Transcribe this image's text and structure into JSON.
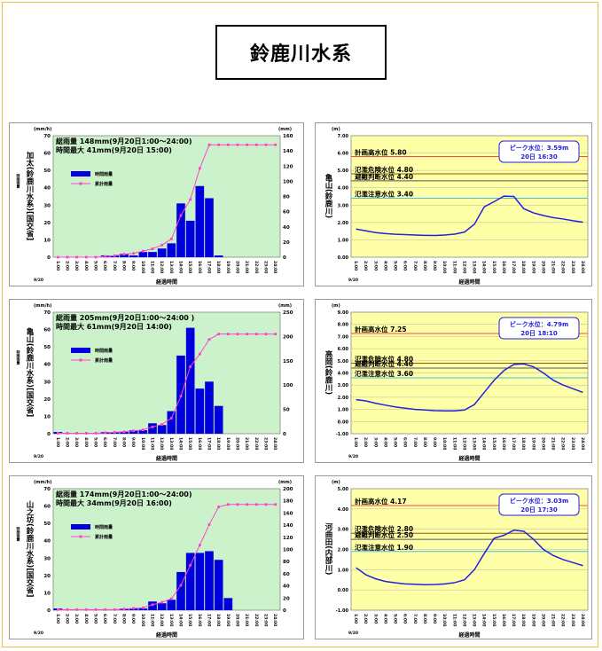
{
  "page_title": "鈴鹿川水系",
  "x_labels": [
    "1:00",
    "2:00",
    "3:00",
    "4:00",
    "5:00",
    "6:00",
    "7:00",
    "8:00",
    "9:00",
    "10:00",
    "11:00",
    "12:00",
    "13:00",
    "14:00",
    "15:00",
    "16:00",
    "17:00",
    "18:00",
    "19:00",
    "20:00",
    "21:00",
    "22:00",
    "23:00",
    "24:00"
  ],
  "date_label": "9/20",
  "x_axis_label": "経過時間",
  "rain_unit_left": "(mm/h)",
  "rain_unit_right": "(mm)",
  "level_unit": "(m)",
  "legend_hourly": "時間雨量",
  "legend_cum": "累計雨量",
  "colors": {
    "bar": "#0000dd",
    "cum": "#ff44cc",
    "rain_bg": "#ccf2cc",
    "level_bg": "#ffffa8",
    "level_line": "#2222dd"
  },
  "chart_data": [
    {
      "type": "bar",
      "role": "rain",
      "station": "加太(鈴鹿川水系)[国交省]",
      "note1": "総雨量 148mm(9月20日1:00～24:00)",
      "note2": "時間最大 41mm(9月20日 15:00)",
      "ylim_left": [
        0,
        70
      ],
      "yticks_left": [
        0,
        10,
        20,
        30,
        40,
        50,
        60,
        70
      ],
      "ylim_right": [
        0,
        160
      ],
      "yticks_right": [
        0,
        20,
        40,
        60,
        80,
        100,
        120,
        140,
        160
      ],
      "series": [
        {
          "name": "時間雨量",
          "values": [
            0,
            0,
            0,
            0,
            0,
            1,
            1,
            2,
            1,
            3,
            3,
            5,
            8,
            31,
            21,
            41,
            34,
            1,
            0,
            0,
            0,
            0,
            0,
            0
          ]
        },
        {
          "name": "累計雨量",
          "values": [
            0,
            0,
            0,
            0,
            0,
            1,
            2,
            4,
            5,
            8,
            11,
            16,
            24,
            55,
            76,
            117,
            148,
            148,
            148,
            148,
            148,
            148,
            148,
            148
          ]
        }
      ]
    },
    {
      "type": "line",
      "role": "level",
      "station": "亀山(鈴鹿川)",
      "peak_label": "ピーク水位：3.59m",
      "peak_time": "20日 16:30",
      "ylim": [
        0,
        7
      ],
      "yticks": [
        "0.00",
        "1.00",
        "2.00",
        "3.00",
        "4.00",
        "5.00",
        "6.00",
        "7.00"
      ],
      "thresholds": [
        {
          "label": "計画高水位 5.80",
          "value": 5.8,
          "color": "#ff4444"
        },
        {
          "label": "氾濫危険水位 4.80",
          "value": 4.8,
          "color": "#8a5a00"
        },
        {
          "label": "避難判断水位 4.40",
          "value": 4.4,
          "color": "#555555"
        },
        {
          "label": "氾濫注意水位 3.40",
          "value": 3.4,
          "color": "#44bbee"
        }
      ],
      "values": [
        1.62,
        1.52,
        1.42,
        1.36,
        1.32,
        1.3,
        1.28,
        1.26,
        1.25,
        1.28,
        1.33,
        1.45,
        1.9,
        2.9,
        3.2,
        3.52,
        3.5,
        2.8,
        2.55,
        2.4,
        2.28,
        2.2,
        2.1,
        2.02
      ]
    },
    {
      "type": "bar",
      "role": "rain",
      "station": "亀山(鈴鹿川水系)[国交省]",
      "note1": "総雨量 205mm(9月20日1:00～24:00 )",
      "note2": "時間最大 61mm(9月20日 14:00)",
      "ylim_left": [
        0,
        70
      ],
      "yticks_left": [
        0,
        10,
        20,
        30,
        40,
        50,
        60,
        70
      ],
      "ylim_right": [
        0,
        250
      ],
      "yticks_right": [
        0,
        50,
        100,
        150,
        200,
        250
      ],
      "series": [
        {
          "name": "時間雨量",
          "values": [
            1,
            0,
            0,
            0,
            0,
            1,
            1,
            1,
            2,
            2,
            6,
            5,
            13,
            45,
            61,
            26,
            30,
            16,
            0,
            0,
            0,
            0,
            0,
            0
          ]
        },
        {
          "name": "累計雨量",
          "values": [
            1,
            1,
            1,
            1,
            1,
            2,
            3,
            4,
            6,
            8,
            14,
            19,
            32,
            77,
            138,
            164,
            194,
            205,
            205,
            205,
            205,
            205,
            205,
            205
          ]
        }
      ]
    },
    {
      "type": "line",
      "role": "level",
      "station": "高岡(鈴鹿川)",
      "peak_label": "ピーク水位：4.79m",
      "peak_time": "20日 18:10",
      "ylim": [
        -1,
        9
      ],
      "yticks": [
        "-1.00",
        "0.00",
        "1.00",
        "2.00",
        "3.00",
        "4.00",
        "5.00",
        "6.00",
        "7.00",
        "8.00",
        "9.00"
      ],
      "thresholds": [
        {
          "label": "計画高水位 7.25",
          "value": 7.25,
          "color": "#ff4444"
        },
        {
          "label": "氾濫危険水位 4.80",
          "value": 4.8,
          "color": "#8a5a00"
        },
        {
          "label": "避難判断水位 4.40",
          "value": 4.4,
          "color": "#555555"
        },
        {
          "label": "氾濫注意水位 3.60",
          "value": 3.6,
          "color": "#44bbee"
        }
      ],
      "values": [
        1.8,
        1.7,
        1.5,
        1.35,
        1.2,
        1.1,
        1.0,
        0.95,
        0.9,
        0.88,
        0.88,
        0.95,
        1.4,
        2.4,
        3.4,
        4.2,
        4.7,
        4.75,
        4.5,
        4.0,
        3.4,
        3.0,
        2.7,
        2.4
      ]
    },
    {
      "type": "bar",
      "role": "rain",
      "station": "山之坊(鈴鹿川水系)[国交省]",
      "note1": "総雨量 174mm(9月20日1:00～24:00)",
      "note2": "時間最大 34mm(9月20日 16:00)",
      "ylim_left": [
        0,
        70
      ],
      "yticks_left": [
        0,
        10,
        20,
        30,
        40,
        50,
        60,
        70
      ],
      "ylim_right": [
        0,
        200
      ],
      "yticks_right": [
        0,
        20,
        40,
        60,
        80,
        100,
        120,
        140,
        160,
        180,
        200
      ],
      "series": [
        {
          "name": "時間雨量",
          "values": [
            1,
            0,
            0,
            0,
            0,
            0,
            0,
            1,
            1,
            1,
            5,
            4,
            6,
            22,
            33,
            33,
            34,
            29,
            7,
            0,
            0,
            0,
            0,
            0
          ]
        },
        {
          "name": "累計雨量",
          "values": [
            1,
            1,
            1,
            1,
            1,
            1,
            1,
            2,
            3,
            4,
            9,
            13,
            19,
            41,
            74,
            107,
            141,
            170,
            174,
            174,
            174,
            174,
            174,
            174
          ]
        }
      ]
    },
    {
      "type": "line",
      "role": "level",
      "station": "河曲田(内部川)",
      "peak_label": "ピーク水位：3.03m",
      "peak_time": "20日 17:30",
      "ylim": [
        -1,
        5
      ],
      "yticks": [
        "-1.00",
        "0.00",
        "1.00",
        "2.00",
        "3.00",
        "4.00",
        "5.00"
      ],
      "thresholds": [
        {
          "label": "計画高水位 4.17",
          "value": 4.17,
          "color": "#ff4444"
        },
        {
          "label": "氾濫危険水位 2.80",
          "value": 2.8,
          "color": "#8a5a00"
        },
        {
          "label": "避難判断水位 2.50",
          "value": 2.5,
          "color": "#555555"
        },
        {
          "label": "氾濫注意水位 1.90",
          "value": 1.9,
          "color": "#44bbee"
        }
      ],
      "values": [
        1.1,
        0.75,
        0.55,
        0.42,
        0.35,
        0.3,
        0.28,
        0.26,
        0.27,
        0.3,
        0.36,
        0.5,
        1.0,
        1.8,
        2.55,
        2.7,
        2.95,
        2.9,
        2.5,
        2.0,
        1.7,
        1.5,
        1.35,
        1.2
      ]
    }
  ]
}
